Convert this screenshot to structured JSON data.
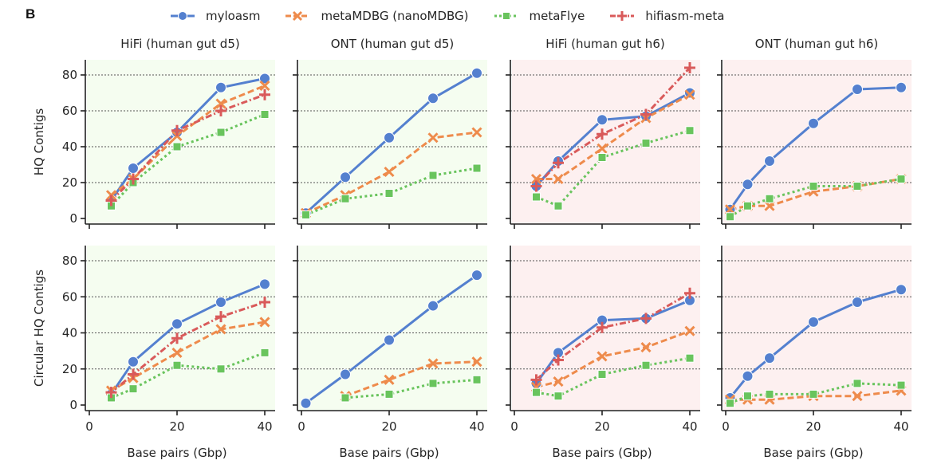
{
  "figure": {
    "panel_label": "B"
  },
  "legend": [
    {
      "name": "myloasm",
      "color": "#5480cf",
      "marker": "circle",
      "dash": "solid"
    },
    {
      "name": "metaMDBG (nanoMDBG)",
      "color": "#ee8b4c",
      "marker": "x",
      "dash": "dashed"
    },
    {
      "name": "metaFlye",
      "color": "#69c45d",
      "marker": "square",
      "dash": "dotted"
    },
    {
      "name": "hifiasm-meta",
      "color": "#d95a5a",
      "marker": "plus",
      "dash": "dashdot"
    }
  ],
  "chart_data": [
    {
      "type": "line",
      "row": "top",
      "title": "HiFi (human gut d5)",
      "background": "#f5fdf0",
      "xlabel": "",
      "ylabel": "HQ Contigs",
      "xlim": [
        0,
        40
      ],
      "ylim": [
        0,
        80
      ],
      "xticks": [
        0,
        20,
        40
      ],
      "yticks": [
        0,
        20,
        40,
        60,
        80
      ],
      "grid": "y-dashed",
      "series": [
        {
          "name": "myloasm",
          "x": [
            5,
            10,
            20,
            30,
            40
          ],
          "y": [
            10,
            28,
            48,
            73,
            78
          ]
        },
        {
          "name": "metaMDBG (nanoMDBG)",
          "x": [
            5,
            10,
            20,
            30,
            40
          ],
          "y": [
            13,
            22,
            46,
            64,
            74
          ]
        },
        {
          "name": "metaFlye",
          "x": [
            5,
            10,
            20,
            30,
            40
          ],
          "y": [
            7,
            20,
            40,
            48,
            58
          ]
        },
        {
          "name": "hifiasm-meta",
          "x": [
            5,
            10,
            20,
            30,
            40
          ],
          "y": [
            10,
            22,
            49,
            60,
            69
          ]
        }
      ]
    },
    {
      "type": "line",
      "row": "top",
      "title": "ONT (human gut d5)",
      "background": "#f5fdf0",
      "xlabel": "",
      "ylabel": "",
      "xlim": [
        0,
        40
      ],
      "ylim": [
        0,
        80
      ],
      "xticks": [
        0,
        20,
        40
      ],
      "yticks": [
        0,
        20,
        40,
        60,
        80
      ],
      "grid": "y-dashed",
      "series": [
        {
          "name": "myloasm",
          "x": [
            1,
            10,
            20,
            30,
            40
          ],
          "y": [
            3,
            23,
            45,
            67,
            81
          ]
        },
        {
          "name": "metaMDBG (nanoMDBG)",
          "x": [
            1,
            10,
            20,
            30,
            40
          ],
          "y": [
            3,
            13,
            26,
            45,
            48
          ]
        },
        {
          "name": "metaFlye",
          "x": [
            1,
            10,
            20,
            30,
            40
          ],
          "y": [
            2,
            11,
            14,
            24,
            28
          ]
        }
      ]
    },
    {
      "type": "line",
      "row": "top",
      "title": "HiFi (human gut h6)",
      "background": "#fdf0f0",
      "xlabel": "",
      "ylabel": "",
      "xlim": [
        0,
        40
      ],
      "ylim": [
        0,
        80
      ],
      "xticks": [
        0,
        20,
        40
      ],
      "yticks": [
        0,
        20,
        40,
        60,
        80
      ],
      "grid": "y-dashed",
      "series": [
        {
          "name": "myloasm",
          "x": [
            5,
            10,
            20,
            30,
            40
          ],
          "y": [
            18,
            32,
            55,
            57,
            70
          ]
        },
        {
          "name": "metaMDBG (nanoMDBG)",
          "x": [
            5,
            10,
            20,
            30,
            40
          ],
          "y": [
            22,
            22,
            39,
            56,
            69
          ]
        },
        {
          "name": "metaFlye",
          "x": [
            5,
            10,
            20,
            30,
            40
          ],
          "y": [
            12,
            7,
            34,
            42,
            49
          ]
        },
        {
          "name": "hifiasm-meta",
          "x": [
            5,
            10,
            20,
            30,
            40
          ],
          "y": [
            18,
            31,
            47,
            58,
            84
          ]
        }
      ]
    },
    {
      "type": "line",
      "row": "top",
      "title": "ONT (human gut h6)",
      "background": "#fdf0f0",
      "xlabel": "",
      "ylabel": "",
      "xlim": [
        0,
        40
      ],
      "ylim": [
        0,
        80
      ],
      "xticks": [
        0,
        20,
        40
      ],
      "yticks": [
        0,
        20,
        40,
        60,
        80
      ],
      "grid": "y-dashed",
      "series": [
        {
          "name": "myloasm",
          "x": [
            1,
            5,
            10,
            20,
            30,
            40
          ],
          "y": [
            5,
            19,
            32,
            53,
            72,
            73
          ]
        },
        {
          "name": "metaMDBG (nanoMDBG)",
          "x": [
            1,
            5,
            10,
            20,
            30,
            40
          ],
          "y": [
            5,
            7,
            7,
            15,
            18,
            22
          ]
        },
        {
          "name": "metaFlye",
          "x": [
            1,
            5,
            10,
            20,
            30,
            40
          ],
          "y": [
            1,
            7,
            11,
            18,
            18,
            22
          ]
        }
      ]
    },
    {
      "type": "line",
      "row": "bottom",
      "title": "",
      "background": "#f5fdf0",
      "xlabel": "Base pairs (Gbp)",
      "ylabel": "Circular HQ Contigs",
      "xlim": [
        0,
        40
      ],
      "ylim": [
        0,
        80
      ],
      "xticks": [
        0,
        20,
        40
      ],
      "yticks": [
        0,
        20,
        40,
        60,
        80
      ],
      "grid": "y-dashed",
      "series": [
        {
          "name": "myloasm",
          "x": [
            5,
            10,
            20,
            30,
            40
          ],
          "y": [
            6,
            24,
            45,
            57,
            67
          ]
        },
        {
          "name": "metaMDBG (nanoMDBG)",
          "x": [
            5,
            10,
            20,
            30,
            40
          ],
          "y": [
            8,
            15,
            29,
            42,
            46
          ]
        },
        {
          "name": "metaFlye",
          "x": [
            5,
            10,
            20,
            30,
            40
          ],
          "y": [
            4,
            9,
            22,
            20,
            29
          ]
        },
        {
          "name": "hifiasm-meta",
          "x": [
            5,
            10,
            20,
            30,
            40
          ],
          "y": [
            7,
            17,
            37,
            49,
            57
          ]
        }
      ]
    },
    {
      "type": "line",
      "row": "bottom",
      "title": "",
      "background": "#f5fdf0",
      "xlabel": "Base pairs (Gbp)",
      "ylabel": "",
      "xlim": [
        0,
        40
      ],
      "ylim": [
        0,
        80
      ],
      "xticks": [
        0,
        20,
        40
      ],
      "yticks": [
        0,
        20,
        40,
        60,
        80
      ],
      "grid": "y-dashed",
      "series": [
        {
          "name": "myloasm",
          "x": [
            1,
            10,
            20,
            30,
            40
          ],
          "y": [
            1,
            17,
            36,
            55,
            72
          ]
        },
        {
          "name": "metaMDBG (nanoMDBG)",
          "x": [
            10,
            20,
            30,
            40
          ],
          "y": [
            5,
            14,
            23,
            24
          ]
        },
        {
          "name": "metaFlye",
          "x": [
            10,
            20,
            30,
            40
          ],
          "y": [
            4,
            6,
            12,
            14
          ]
        }
      ]
    },
    {
      "type": "line",
      "row": "bottom",
      "title": "",
      "background": "#fdf0f0",
      "xlabel": "Base pairs (Gbp)",
      "ylabel": "",
      "xlim": [
        0,
        40
      ],
      "ylim": [
        0,
        80
      ],
      "xticks": [
        0,
        20,
        40
      ],
      "yticks": [
        0,
        20,
        40,
        60,
        80
      ],
      "grid": "y-dashed",
      "series": [
        {
          "name": "myloasm",
          "x": [
            5,
            10,
            20,
            30,
            40
          ],
          "y": [
            12,
            29,
            47,
            48,
            58
          ]
        },
        {
          "name": "metaMDBG (nanoMDBG)",
          "x": [
            5,
            10,
            20,
            30,
            40
          ],
          "y": [
            10,
            13,
            27,
            32,
            41
          ]
        },
        {
          "name": "metaFlye",
          "x": [
            5,
            10,
            20,
            30,
            40
          ],
          "y": [
            7,
            5,
            17,
            22,
            26
          ]
        },
        {
          "name": "hifiasm-meta",
          "x": [
            5,
            10,
            20,
            30,
            40
          ],
          "y": [
            14,
            25,
            43,
            48,
            62
          ]
        }
      ]
    },
    {
      "type": "line",
      "row": "bottom",
      "title": "",
      "background": "#fdf0f0",
      "xlabel": "Base pairs (Gbp)",
      "ylabel": "",
      "xlim": [
        0,
        40
      ],
      "ylim": [
        0,
        80
      ],
      "xticks": [
        0,
        20,
        40
      ],
      "yticks": [
        0,
        20,
        40,
        60,
        80
      ],
      "grid": "y-dashed",
      "series": [
        {
          "name": "myloasm",
          "x": [
            1,
            5,
            10,
            20,
            30,
            40
          ],
          "y": [
            4,
            16,
            26,
            46,
            57,
            64
          ]
        },
        {
          "name": "metaMDBG (nanoMDBG)",
          "x": [
            1,
            5,
            10,
            20,
            30,
            40
          ],
          "y": [
            3,
            3,
            3,
            5,
            5,
            8
          ]
        },
        {
          "name": "metaFlye",
          "x": [
            1,
            5,
            10,
            20,
            30,
            40
          ],
          "y": [
            1,
            5,
            6,
            6,
            12,
            11
          ]
        }
      ]
    }
  ]
}
